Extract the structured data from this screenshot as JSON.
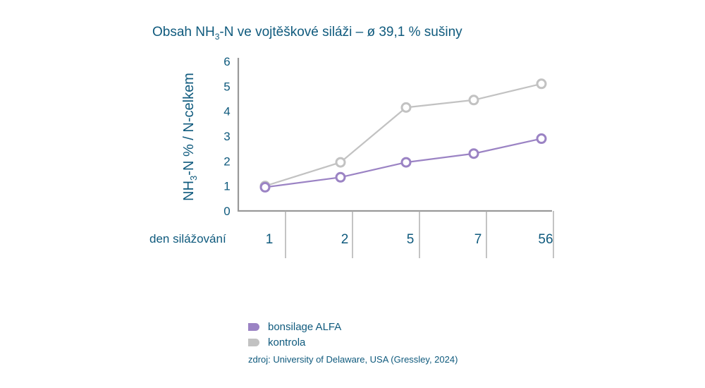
{
  "chart_data": {
    "type": "line",
    "title_parts": {
      "before": "Obsah NH",
      "sub": "3",
      "after": "-N ve vojtěškové siláži – ø 39,1 % sušiny"
    },
    "ylabel_parts": {
      "before": "NH",
      "sub": "3",
      "after": "-N % / N-celkem"
    },
    "xlabel": "den silážování",
    "categories": [
      "1",
      "2",
      "5",
      "7",
      "56"
    ],
    "ylim": [
      0,
      6
    ],
    "yticks": [
      "0",
      "1",
      "2",
      "3",
      "4",
      "5",
      "6"
    ],
    "series": [
      {
        "name": "kontrola",
        "color": "#c2c2c2",
        "values": [
          1.0,
          1.95,
          4.15,
          4.45,
          5.1
        ]
      },
      {
        "name": "bonsilage ALFA",
        "color": "#9b83c4",
        "values": [
          0.95,
          1.35,
          1.95,
          2.3,
          2.9
        ]
      }
    ],
    "legend": [
      {
        "label": "bonsilage ALFA",
        "color": "#9b83c4"
      },
      {
        "label": "kontrola",
        "color": "#c2c2c2"
      }
    ],
    "source": "zdroj: University of Delaware, USA (Gressley, 2024)"
  }
}
